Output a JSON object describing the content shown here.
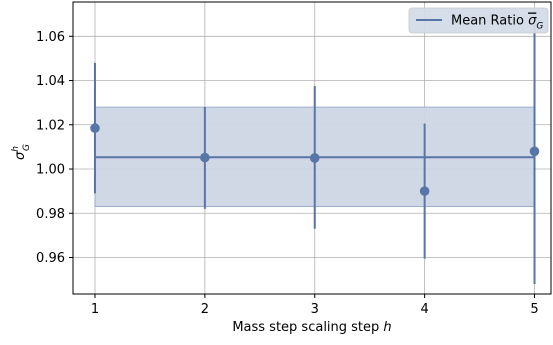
{
  "chart_data": {
    "type": "scatter",
    "x": [
      1,
      2,
      3,
      4,
      5
    ],
    "y": [
      1.0185,
      1.0052,
      1.005,
      0.99,
      1.008
    ],
    "yerr_lower": [
      0.0295,
      0.0232,
      0.032,
      0.0305,
      0.06
    ],
    "yerr_upper": [
      0.0295,
      0.0228,
      0.0325,
      0.0305,
      0.06
    ],
    "mean": 1.0053,
    "band": [
      0.983,
      1.028
    ],
    "xlim": [
      0.8,
      5.15
    ],
    "ylim": [
      0.9435,
      1.0755
    ],
    "xticks": [
      "1",
      "2",
      "3",
      "4",
      "5"
    ],
    "yticks": [
      "0.96",
      "0.98",
      "1.00",
      "1.02",
      "1.04",
      "1.06"
    ],
    "ytick_values": [
      0.96,
      0.98,
      1.0,
      1.02,
      1.04,
      1.06
    ],
    "xlabel": "Mass step scaling step h",
    "xlabel_prefix": "Mass step scaling step ",
    "xlabel_var": "h",
    "ylabel": "σ_G^h",
    "legend": "Mean Ratio σ_G",
    "legend_prefix": "Mean Ratio ",
    "legend_symbol": "σ",
    "legend_sub": "G",
    "legend_position": "top-right",
    "grid": true,
    "colors": {
      "series": "#5875a8",
      "band_fill": "#cdd6e4",
      "band_edge": "#8fa3c6",
      "grid": "#b0b0b0",
      "legend_bg": "#d3dbe8"
    }
  }
}
